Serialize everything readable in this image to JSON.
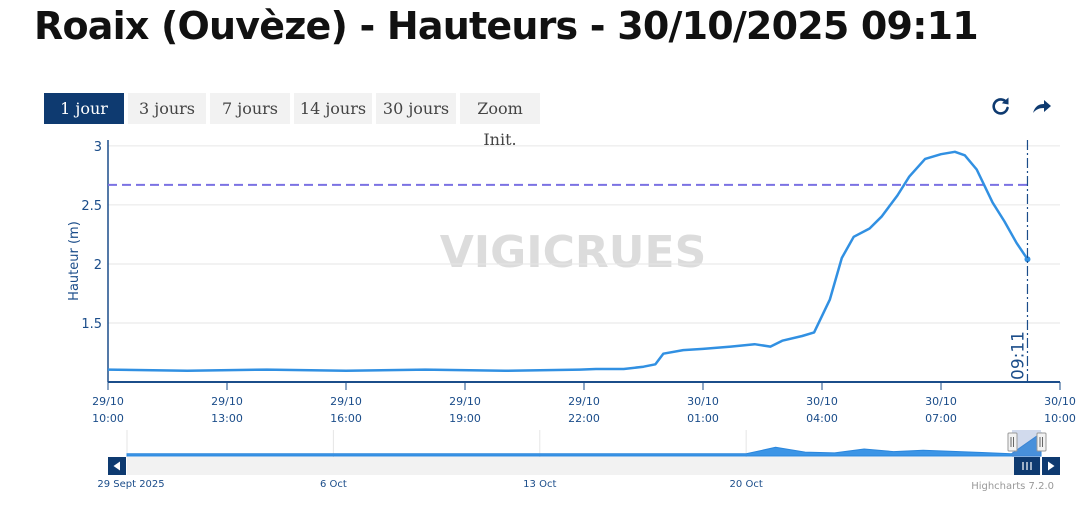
{
  "title": "Roaix (Ouvèze) - Hauteurs - 30/10/2025 09:11",
  "range_buttons": [
    {
      "label": "1 jour",
      "active": true
    },
    {
      "label": "3 jours",
      "active": false
    },
    {
      "label": "7 jours",
      "active": false
    },
    {
      "label": "14 jours",
      "active": false
    },
    {
      "label": "30 jours",
      "active": false
    },
    {
      "label": "Zoom Init.",
      "active": false
    }
  ],
  "icons": {
    "refresh": "refresh-icon",
    "share": "share-arrow-icon"
  },
  "chart_data": {
    "type": "line",
    "ylabel": "Hauteur (m)",
    "ylim": [
      1.0,
      3.05
    ],
    "yticks": [
      "1.5",
      "2",
      "2.5",
      "3"
    ],
    "xlim_hours": [
      0,
      24
    ],
    "xticks": [
      {
        "h": 0,
        "d": "29/10",
        "t": "10:00"
      },
      {
        "h": 3,
        "d": "29/10",
        "t": "13:00"
      },
      {
        "h": 6,
        "d": "29/10",
        "t": "16:00"
      },
      {
        "h": 9,
        "d": "29/10",
        "t": "19:00"
      },
      {
        "h": 12,
        "d": "29/10",
        "t": "22:00"
      },
      {
        "h": 15,
        "d": "30/10",
        "t": "01:00"
      },
      {
        "h": 18,
        "d": "30/10",
        "t": "04:00"
      },
      {
        "h": 21,
        "d": "30/10",
        "t": "07:00"
      },
      {
        "h": 24,
        "d": "30/10",
        "t": "10:00"
      }
    ],
    "threshold": 2.67,
    "now_label": "09:11",
    "now_hour": 23.18,
    "watermark": "VIGICRUES",
    "series": [
      {
        "points": [
          [
            0,
            1.1
          ],
          [
            2,
            1.1
          ],
          [
            4,
            1.1
          ],
          [
            6,
            1.1
          ],
          [
            8,
            1.1
          ],
          [
            10,
            1.1
          ],
          [
            11.9,
            1.1
          ],
          [
            12.3,
            1.11
          ],
          [
            13.0,
            1.11
          ],
          [
            13.5,
            1.13
          ],
          [
            13.8,
            1.15
          ],
          [
            14.0,
            1.24
          ],
          [
            14.5,
            1.27
          ],
          [
            15.0,
            1.28
          ],
          [
            15.7,
            1.3
          ],
          [
            16.3,
            1.32
          ],
          [
            16.7,
            1.3
          ],
          [
            17.0,
            1.35
          ],
          [
            17.5,
            1.39
          ],
          [
            17.8,
            1.42
          ],
          [
            18.2,
            1.7
          ],
          [
            18.5,
            2.05
          ],
          [
            18.8,
            2.23
          ],
          [
            19.2,
            2.3
          ],
          [
            19.5,
            2.4
          ],
          [
            19.9,
            2.58
          ],
          [
            20.2,
            2.74
          ],
          [
            20.6,
            2.89
          ],
          [
            21.0,
            2.93
          ],
          [
            21.35,
            2.95
          ],
          [
            21.6,
            2.92
          ],
          [
            21.9,
            2.8
          ],
          [
            22.3,
            2.52
          ],
          [
            22.6,
            2.36
          ],
          [
            22.9,
            2.18
          ],
          [
            23.18,
            2.04
          ]
        ]
      }
    ],
    "navigator": {
      "labels": [
        "29 Sept 2025",
        "6 Oct",
        "13 Oct",
        "20 Oct"
      ],
      "start": "2025-09-29",
      "points": [
        [
          "2025-09-29",
          1.1
        ],
        [
          "2025-10-20",
          1.1
        ],
        [
          "2025-10-21",
          1.4
        ],
        [
          "2025-10-22",
          1.18
        ],
        [
          "2025-10-23",
          1.14
        ],
        [
          "2025-10-24",
          1.32
        ],
        [
          "2025-10-25",
          1.2
        ],
        [
          "2025-10-26",
          1.26
        ],
        [
          "2025-10-28",
          1.16
        ],
        [
          "2025-10-29",
          1.1
        ],
        [
          "2025-10-30",
          2.05
        ]
      ]
    }
  },
  "credits": "Highcharts 7.2.0"
}
